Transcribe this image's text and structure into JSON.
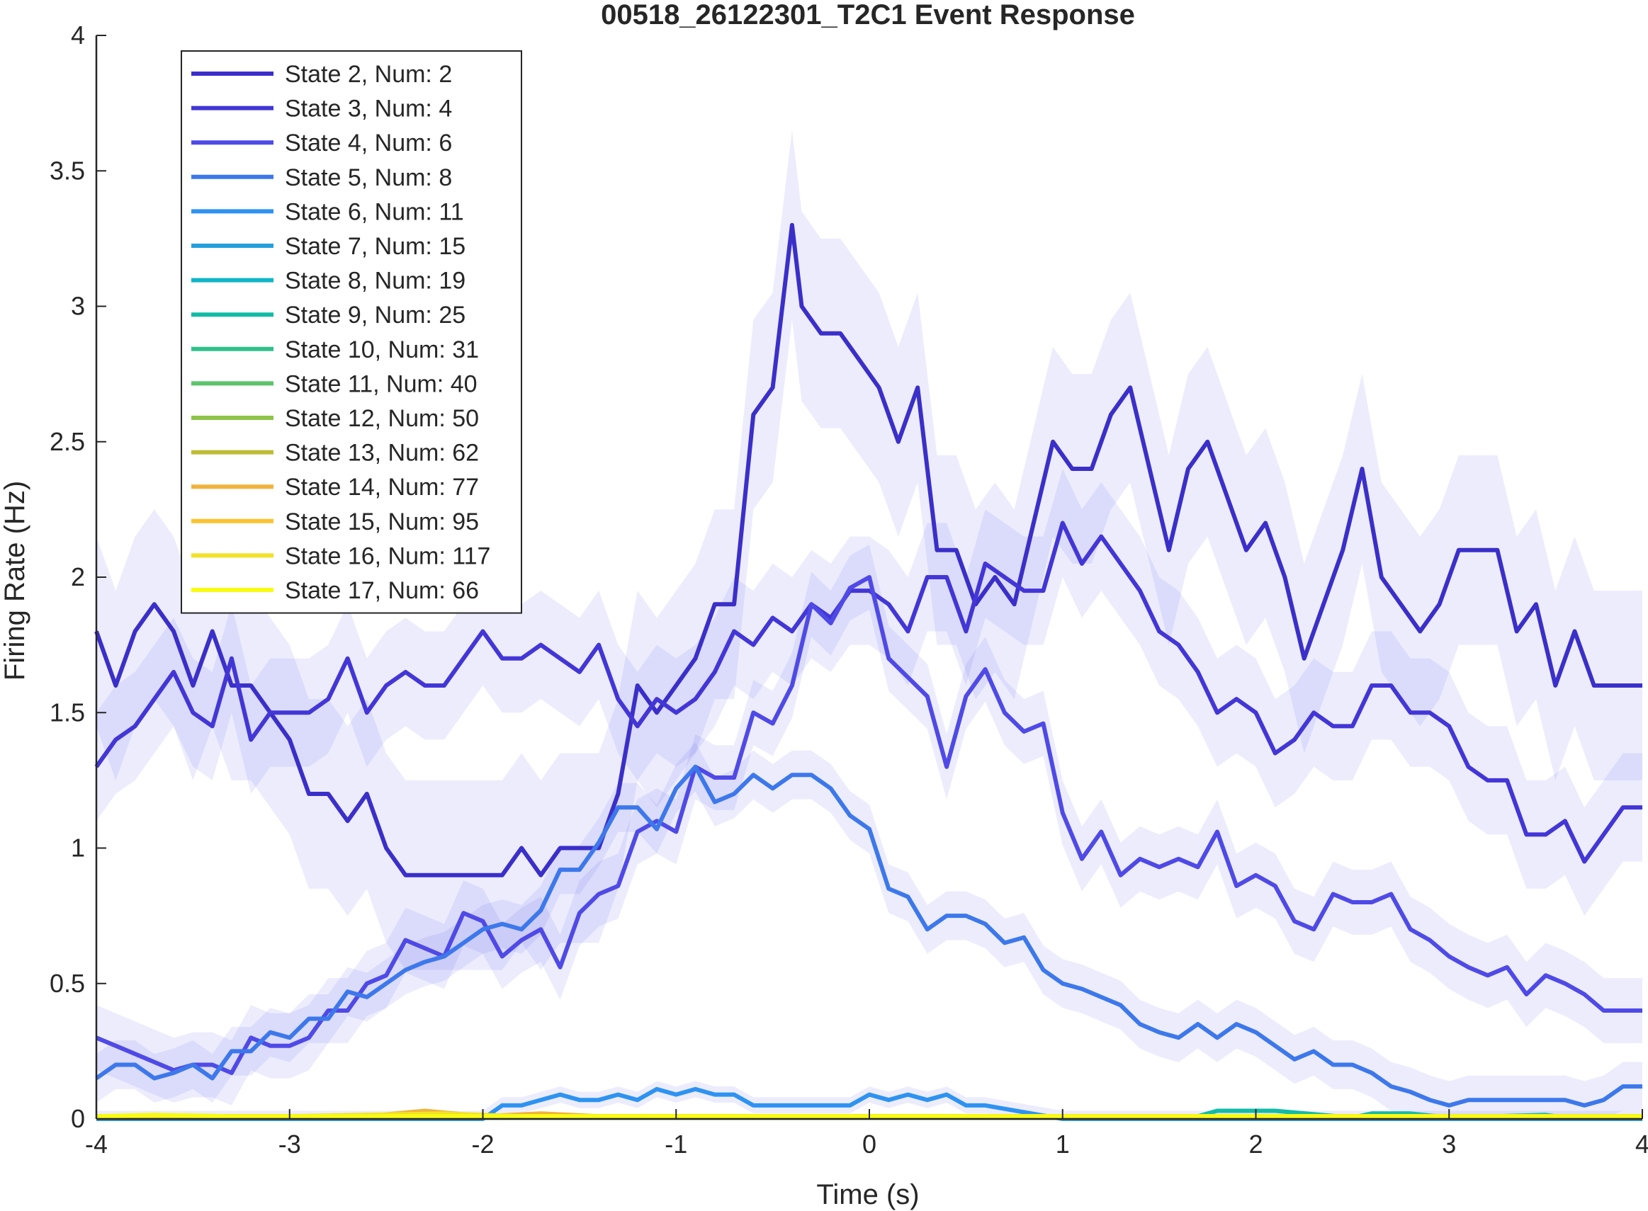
{
  "chart_data": {
    "type": "line",
    "title": "00518_26122301_T2C1 Event Response",
    "xlabel": "Time (s)",
    "ylabel": "Firing Rate (Hz)",
    "xlim": [
      -4,
      4
    ],
    "ylim": [
      0,
      4
    ],
    "xticks": [
      "-4",
      "-3",
      "-2",
      "-1",
      "0",
      "1",
      "2",
      "3",
      "4"
    ],
    "yticks": [
      "0",
      "0.5",
      "1",
      "1.5",
      "2",
      "2.5",
      "3",
      "3.5",
      "4"
    ],
    "grid": false,
    "legend_position": "top-left",
    "band_color": "#6a6aee",
    "series": [
      {
        "name": "State 2, Num: 2",
        "color": "#3b2fc9",
        "x": [
          -4,
          -3.9,
          -3.8,
          -3.7,
          -3.6,
          -3.5,
          -3.4,
          -3.3,
          -3.2,
          -3.1,
          -3.0,
          -2.9,
          -2.8,
          -2.7,
          -2.6,
          -2.5,
          -2.4,
          -2.3,
          -2.2,
          -2.1,
          -2.0,
          -1.9,
          -1.8,
          -1.7,
          -1.6,
          -1.5,
          -1.4,
          -1.3,
          -1.2,
          -1.1,
          -1.0,
          -0.9,
          -0.8,
          -0.7,
          -0.6,
          -0.5,
          -0.4,
          -0.35,
          -0.25,
          -0.15,
          -0.05,
          0.05,
          0.15,
          0.25,
          0.35,
          0.45,
          0.55,
          0.65,
          0.75,
          0.85,
          0.95,
          1.05,
          1.15,
          1.25,
          1.35,
          1.45,
          1.55,
          1.65,
          1.75,
          1.85,
          1.95,
          2.05,
          2.15,
          2.25,
          2.35,
          2.45,
          2.55,
          2.65,
          2.75,
          2.85,
          2.95,
          3.05,
          3.15,
          3.25,
          3.35,
          3.45,
          3.55,
          3.65,
          3.75,
          3.85,
          3.95,
          4.0
        ],
        "y": [
          1.8,
          1.6,
          1.8,
          1.9,
          1.8,
          1.6,
          1.8,
          1.6,
          1.6,
          1.5,
          1.4,
          1.2,
          1.2,
          1.1,
          1.2,
          1.0,
          0.9,
          0.9,
          0.9,
          0.9,
          0.9,
          0.9,
          1.0,
          0.9,
          1.0,
          1.0,
          1.0,
          1.2,
          1.6,
          1.5,
          1.6,
          1.7,
          1.9,
          1.9,
          2.6,
          2.7,
          3.3,
          3.0,
          2.9,
          2.9,
          2.8,
          2.7,
          2.5,
          2.7,
          2.1,
          2.1,
          1.9,
          2.0,
          1.9,
          2.2,
          2.5,
          2.4,
          2.4,
          2.6,
          2.7,
          2.4,
          2.1,
          2.4,
          2.5,
          2.3,
          2.1,
          2.2,
          2.0,
          1.7,
          1.9,
          2.1,
          2.4,
          2.0,
          1.9,
          1.8,
          1.9,
          2.1,
          2.1,
          2.1,
          1.8,
          1.9,
          1.6,
          1.8,
          1.6,
          1.6,
          1.6,
          1.6
        ],
        "ci_half_width": 0.35
      },
      {
        "name": "State 3, Num: 4",
        "color": "#4336d6",
        "x": [
          -4,
          -3.9,
          -3.8,
          -3.7,
          -3.6,
          -3.5,
          -3.4,
          -3.3,
          -3.2,
          -3.1,
          -3.0,
          -2.9,
          -2.8,
          -2.7,
          -2.6,
          -2.5,
          -2.4,
          -2.3,
          -2.2,
          -2.1,
          -2.0,
          -1.9,
          -1.8,
          -1.7,
          -1.6,
          -1.5,
          -1.4,
          -1.3,
          -1.2,
          -1.1,
          -1.0,
          -0.9,
          -0.8,
          -0.7,
          -0.6,
          -0.5,
          -0.4,
          -0.3,
          -0.2,
          -0.1,
          0.0,
          0.1,
          0.2,
          0.3,
          0.4,
          0.5,
          0.6,
          0.7,
          0.8,
          0.9,
          1.0,
          1.1,
          1.2,
          1.3,
          1.4,
          1.5,
          1.6,
          1.7,
          1.8,
          1.9,
          2.0,
          2.1,
          2.2,
          2.3,
          2.4,
          2.5,
          2.6,
          2.7,
          2.8,
          2.9,
          3.0,
          3.1,
          3.2,
          3.3,
          3.4,
          3.5,
          3.6,
          3.7,
          3.8,
          3.9,
          4.0
        ],
        "y": [
          1.3,
          1.4,
          1.45,
          1.55,
          1.65,
          1.5,
          1.45,
          1.7,
          1.4,
          1.5,
          1.5,
          1.5,
          1.55,
          1.7,
          1.5,
          1.6,
          1.65,
          1.6,
          1.6,
          1.7,
          1.8,
          1.7,
          1.7,
          1.75,
          1.7,
          1.65,
          1.75,
          1.55,
          1.45,
          1.55,
          1.5,
          1.55,
          1.65,
          1.8,
          1.75,
          1.85,
          1.8,
          1.9,
          1.85,
          1.95,
          1.95,
          1.9,
          1.8,
          2.0,
          2.0,
          1.8,
          2.05,
          2.0,
          1.95,
          1.95,
          2.2,
          2.05,
          2.15,
          2.05,
          1.95,
          1.8,
          1.75,
          1.65,
          1.5,
          1.55,
          1.5,
          1.35,
          1.4,
          1.5,
          1.45,
          1.45,
          1.6,
          1.6,
          1.5,
          1.5,
          1.45,
          1.3,
          1.25,
          1.25,
          1.05,
          1.05,
          1.1,
          0.95,
          1.05,
          1.15,
          1.15
        ],
        "ci_half_width": 0.2
      },
      {
        "name": "State 4, Num: 6",
        "color": "#4f4ae6",
        "x": [
          -4,
          -3.9,
          -3.8,
          -3.7,
          -3.6,
          -3.5,
          -3.4,
          -3.3,
          -3.2,
          -3.1,
          -3.0,
          -2.9,
          -2.8,
          -2.7,
          -2.6,
          -2.5,
          -2.4,
          -2.3,
          -2.2,
          -2.1,
          -2.0,
          -1.9,
          -1.8,
          -1.7,
          -1.6,
          -1.5,
          -1.4,
          -1.3,
          -1.2,
          -1.1,
          -1.0,
          -0.9,
          -0.8,
          -0.7,
          -0.6,
          -0.5,
          -0.4,
          -0.3,
          -0.2,
          -0.1,
          0.0,
          0.1,
          0.2,
          0.3,
          0.4,
          0.5,
          0.6,
          0.7,
          0.8,
          0.9,
          1.0,
          1.1,
          1.2,
          1.3,
          1.4,
          1.5,
          1.6,
          1.7,
          1.8,
          1.9,
          2.0,
          2.1,
          2.2,
          2.3,
          2.4,
          2.5,
          2.6,
          2.7,
          2.8,
          2.9,
          3.0,
          3.1,
          3.2,
          3.3,
          3.4,
          3.5,
          3.6,
          3.7,
          3.8,
          3.9,
          4.0
        ],
        "y": [
          0.3,
          0.27,
          0.24,
          0.21,
          0.18,
          0.2,
          0.2,
          0.17,
          0.3,
          0.27,
          0.27,
          0.3,
          0.4,
          0.4,
          0.5,
          0.53,
          0.66,
          0.63,
          0.6,
          0.76,
          0.73,
          0.6,
          0.66,
          0.7,
          0.56,
          0.76,
          0.83,
          0.86,
          1.06,
          1.1,
          1.06,
          1.3,
          1.26,
          1.26,
          1.5,
          1.46,
          1.6,
          1.9,
          1.83,
          1.96,
          2.0,
          1.7,
          1.63,
          1.56,
          1.3,
          1.56,
          1.66,
          1.5,
          1.43,
          1.46,
          1.13,
          0.96,
          1.06,
          0.9,
          0.96,
          0.93,
          0.96,
          0.93,
          1.06,
          0.86,
          0.9,
          0.86,
          0.73,
          0.7,
          0.83,
          0.8,
          0.8,
          0.83,
          0.7,
          0.66,
          0.6,
          0.56,
          0.53,
          0.56,
          0.46,
          0.53,
          0.5,
          0.46,
          0.4,
          0.4,
          0.4
        ],
        "ci_half_width": 0.12
      },
      {
        "name": "State 5, Num: 8",
        "color": "#3d78eb",
        "x": [
          -4,
          -3.9,
          -3.8,
          -3.7,
          -3.6,
          -3.5,
          -3.4,
          -3.3,
          -3.2,
          -3.1,
          -3.0,
          -2.9,
          -2.8,
          -2.7,
          -2.6,
          -2.5,
          -2.4,
          -2.3,
          -2.2,
          -2.1,
          -2.0,
          -1.9,
          -1.8,
          -1.7,
          -1.6,
          -1.5,
          -1.4,
          -1.3,
          -1.2,
          -1.1,
          -1.0,
          -0.9,
          -0.8,
          -0.7,
          -0.6,
          -0.5,
          -0.4,
          -0.3,
          -0.2,
          -0.1,
          0.0,
          0.1,
          0.2,
          0.3,
          0.4,
          0.5,
          0.6,
          0.7,
          0.8,
          0.9,
          1.0,
          1.1,
          1.2,
          1.3,
          1.4,
          1.5,
          1.6,
          1.7,
          1.8,
          1.9,
          2.0,
          2.1,
          2.2,
          2.3,
          2.4,
          2.5,
          2.6,
          2.7,
          2.8,
          2.9,
          3.0,
          3.1,
          3.2,
          3.3,
          3.4,
          3.5,
          3.6,
          3.7,
          3.8,
          3.9,
          4.0
        ],
        "y": [
          0.15,
          0.2,
          0.2,
          0.15,
          0.17,
          0.2,
          0.15,
          0.25,
          0.25,
          0.32,
          0.3,
          0.37,
          0.37,
          0.47,
          0.45,
          0.5,
          0.55,
          0.58,
          0.6,
          0.65,
          0.7,
          0.72,
          0.7,
          0.77,
          0.92,
          0.92,
          1.02,
          1.15,
          1.15,
          1.07,
          1.22,
          1.3,
          1.17,
          1.2,
          1.27,
          1.22,
          1.27,
          1.27,
          1.22,
          1.12,
          1.07,
          0.85,
          0.82,
          0.7,
          0.75,
          0.75,
          0.72,
          0.65,
          0.67,
          0.55,
          0.5,
          0.48,
          0.45,
          0.42,
          0.35,
          0.32,
          0.3,
          0.35,
          0.3,
          0.35,
          0.32,
          0.27,
          0.22,
          0.25,
          0.2,
          0.2,
          0.17,
          0.12,
          0.1,
          0.07,
          0.05,
          0.07,
          0.07,
          0.07,
          0.07,
          0.07,
          0.07,
          0.05,
          0.07,
          0.12,
          0.12
        ],
        "ci_half_width": 0.09
      },
      {
        "name": "State 6, Num: 11",
        "color": "#2e93f0",
        "x": [
          -4,
          -3.5,
          -3.0,
          -2.5,
          -2.0,
          -1.9,
          -1.8,
          -1.7,
          -1.6,
          -1.5,
          -1.4,
          -1.3,
          -1.2,
          -1.1,
          -1.0,
          -0.9,
          -0.8,
          -0.7,
          -0.6,
          -0.5,
          -0.4,
          -0.3,
          -0.2,
          -0.1,
          0.0,
          0.1,
          0.2,
          0.3,
          0.4,
          0.5,
          0.6,
          1.0,
          2.0,
          3.0,
          4.0
        ],
        "y": [
          0.0,
          0.0,
          0.0,
          0.0,
          0.0,
          0.05,
          0.05,
          0.07,
          0.09,
          0.07,
          0.07,
          0.09,
          0.07,
          0.11,
          0.09,
          0.11,
          0.09,
          0.09,
          0.05,
          0.05,
          0.05,
          0.05,
          0.05,
          0.05,
          0.09,
          0.07,
          0.09,
          0.07,
          0.09,
          0.05,
          0.05,
          0.0,
          0.0,
          0.0,
          0.0
        ],
        "ci_half_width": 0.03
      },
      {
        "name": "State 7, Num: 15",
        "color": "#23a0dc",
        "x": [
          -4,
          4
        ],
        "y": [
          0.005,
          0.005
        ],
        "ci_half_width": 0.0
      },
      {
        "name": "State 8, Num: 19",
        "color": "#10b5c7",
        "x": [
          -4,
          4
        ],
        "y": [
          0.005,
          0.005
        ],
        "ci_half_width": 0.0
      },
      {
        "name": "State 9, Num: 25",
        "color": "#12bba6",
        "x": [
          -4,
          1.5,
          1.7,
          1.8,
          2.1,
          2.5,
          2.6,
          2.8,
          3.0,
          3.5,
          3.6,
          4.0
        ],
        "y": [
          0.005,
          0.005,
          0.01,
          0.03,
          0.03,
          0.005,
          0.02,
          0.02,
          0.005,
          0.015,
          0.005,
          0.005
        ],
        "ci_half_width": 0.0
      },
      {
        "name": "State 10, Num: 31",
        "color": "#30c08d",
        "x": [
          -4,
          4
        ],
        "y": [
          0.005,
          0.005
        ],
        "ci_half_width": 0.0
      },
      {
        "name": "State 11, Num: 40",
        "color": "#5cc46a",
        "x": [
          -4,
          4
        ],
        "y": [
          0.005,
          0.005
        ],
        "ci_half_width": 0.0
      },
      {
        "name": "State 12, Num: 50",
        "color": "#8dc449",
        "x": [
          -4,
          4
        ],
        "y": [
          0.005,
          0.005
        ],
        "ci_half_width": 0.0
      },
      {
        "name": "State 13, Num: 62",
        "color": "#bdbc34",
        "x": [
          -4,
          4
        ],
        "y": [
          0.01,
          0.01
        ],
        "ci_half_width": 0.0
      },
      {
        "name": "State 14, Num: 77",
        "color": "#f0b33b",
        "x": [
          -4,
          -2.6,
          -2.3,
          -2.0,
          -1.7,
          -1.4,
          4.0
        ],
        "y": [
          0.01,
          0.01,
          0.03,
          0.01,
          0.02,
          0.01,
          0.01
        ],
        "ci_half_width": 0.0
      },
      {
        "name": "State 15, Num: 95",
        "color": "#fcc330",
        "x": [
          -4,
          4
        ],
        "y": [
          0.01,
          0.01
        ],
        "ci_half_width": 0.0
      },
      {
        "name": "State 16, Num: 117",
        "color": "#f2e227",
        "x": [
          -4,
          -3.0,
          -2.2,
          -1.8,
          -1.0,
          0.0,
          1.0,
          2.0,
          3.0,
          4.0
        ],
        "y": [
          0.01,
          0.01,
          0.02,
          0.01,
          0.01,
          0.01,
          0.01,
          0.01,
          0.01,
          0.01
        ],
        "ci_half_width": 0.0
      },
      {
        "name": "State 17, Num: 66",
        "color": "#f9fb14",
        "x": [
          -4,
          -3.7,
          -3.3,
          -3.0,
          -2.0,
          -1.0,
          0.0,
          1.0,
          2.0,
          3.0,
          4.0
        ],
        "y": [
          0.01,
          0.015,
          0.01,
          0.01,
          0.01,
          0.01,
          0.01,
          0.01,
          0.01,
          0.01,
          0.01
        ],
        "ci_half_width": 0.0
      }
    ]
  }
}
